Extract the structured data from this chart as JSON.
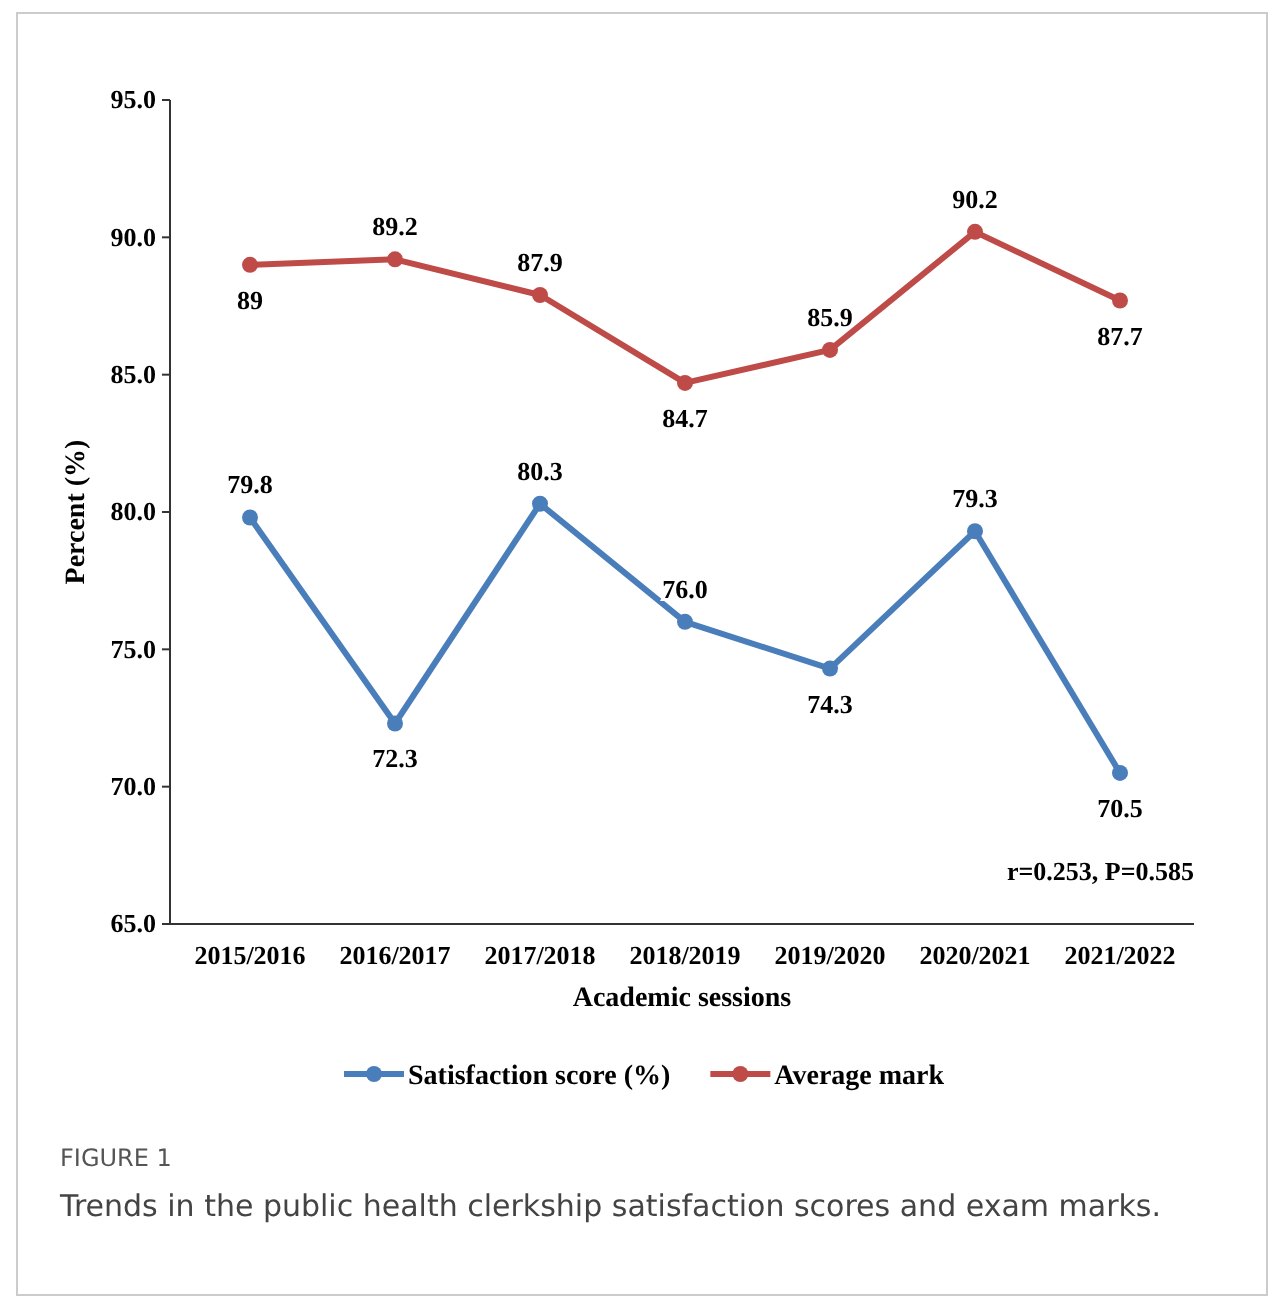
{
  "chart_data": {
    "type": "line",
    "xlabel": "Academic sessions",
    "ylabel": "Percent (%)",
    "categories": [
      "2015/2016",
      "2016/2017",
      "2017/2018",
      "2018/2019",
      "2019/2020",
      "2020/2021",
      "2021/2022"
    ],
    "series": [
      {
        "name": "Satisfaction score (%)",
        "color": "#4a7ebb",
        "values": [
          79.8,
          72.3,
          80.3,
          76.0,
          74.3,
          79.3,
          70.5
        ],
        "value_labels": [
          "79.8",
          "72.3",
          "80.3",
          "76.0",
          "74.3",
          "79.3",
          "70.5"
        ]
      },
      {
        "name": "Average mark",
        "color": "#be4b48",
        "values": [
          89,
          89.2,
          87.9,
          84.7,
          85.9,
          90.2,
          87.7
        ],
        "value_labels": [
          "89",
          "89.2",
          "87.9",
          "84.7",
          "85.9",
          "90.2",
          "87.7"
        ]
      }
    ],
    "ylim": [
      65,
      95
    ],
    "yticks": [
      {
        "value": 65,
        "label": "65.0"
      },
      {
        "value": 70,
        "label": "70.0"
      },
      {
        "value": 75,
        "label": "75.0"
      },
      {
        "value": 80,
        "label": "80.0"
      },
      {
        "value": 85,
        "label": "85.0"
      },
      {
        "value": 90,
        "label": "90.0"
      },
      {
        "value": 95,
        "label": "95.0"
      }
    ],
    "grid": false,
    "legend": "bottom",
    "marker": "circle",
    "line_style": "solid",
    "annotations": [
      {
        "text": "r=0.253, P=0.585"
      },
      {
        "text": "FIGURE 1"
      },
      {
        "text": "Trends in the public health clerkship satisfaction scores and exam marks."
      }
    ]
  }
}
